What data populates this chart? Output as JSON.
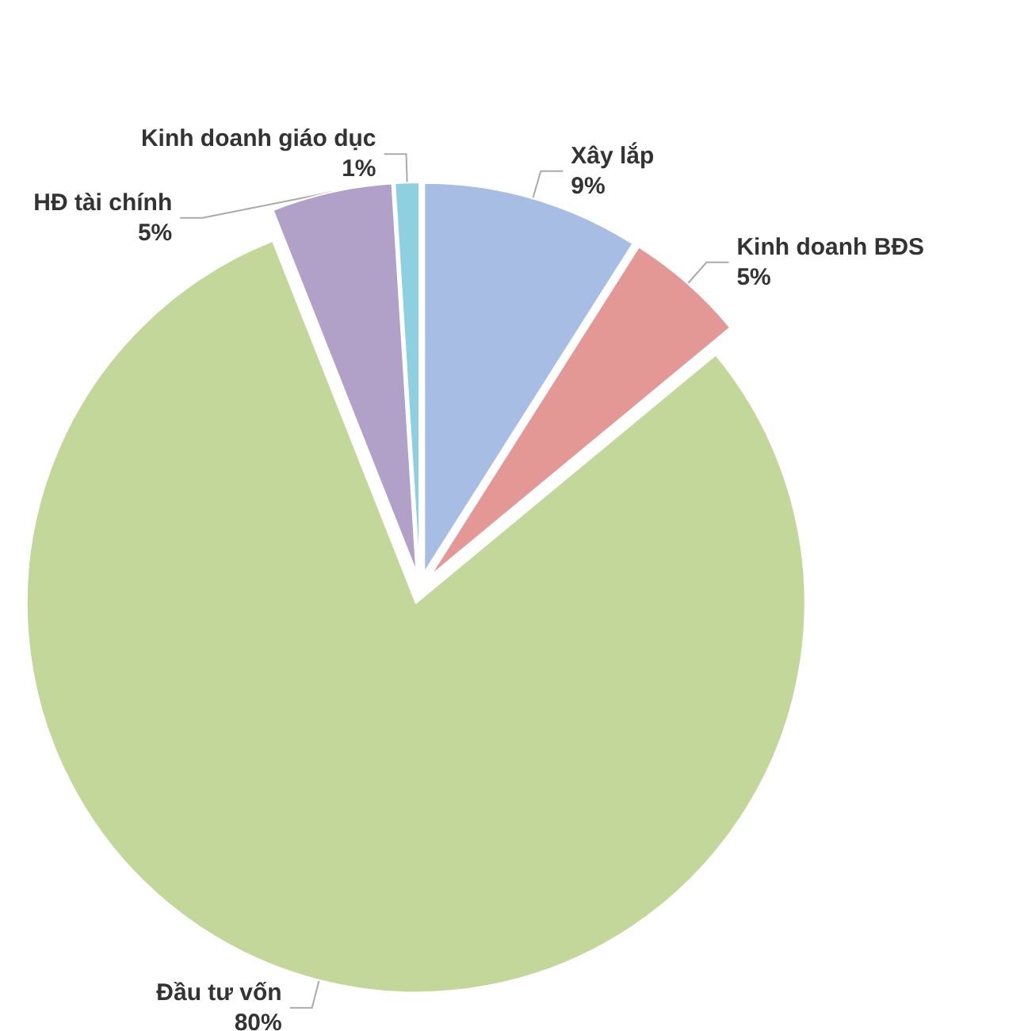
{
  "chart_data": {
    "type": "pie",
    "categories": [
      "Xây lắp",
      "Kinh doanh BĐS",
      "Đầu tư vốn",
      "HĐ tài chính",
      "Kinh doanh giáo dục"
    ],
    "values": [
      9,
      5,
      80,
      5,
      1
    ],
    "value_labels": [
      "9%",
      "5%",
      "80%",
      "5%",
      "1%"
    ],
    "colors": [
      "#a7bde3",
      "#e39896",
      "#c4d79b",
      "#b1a0c7",
      "#8fd0e0"
    ],
    "legend": false
  }
}
